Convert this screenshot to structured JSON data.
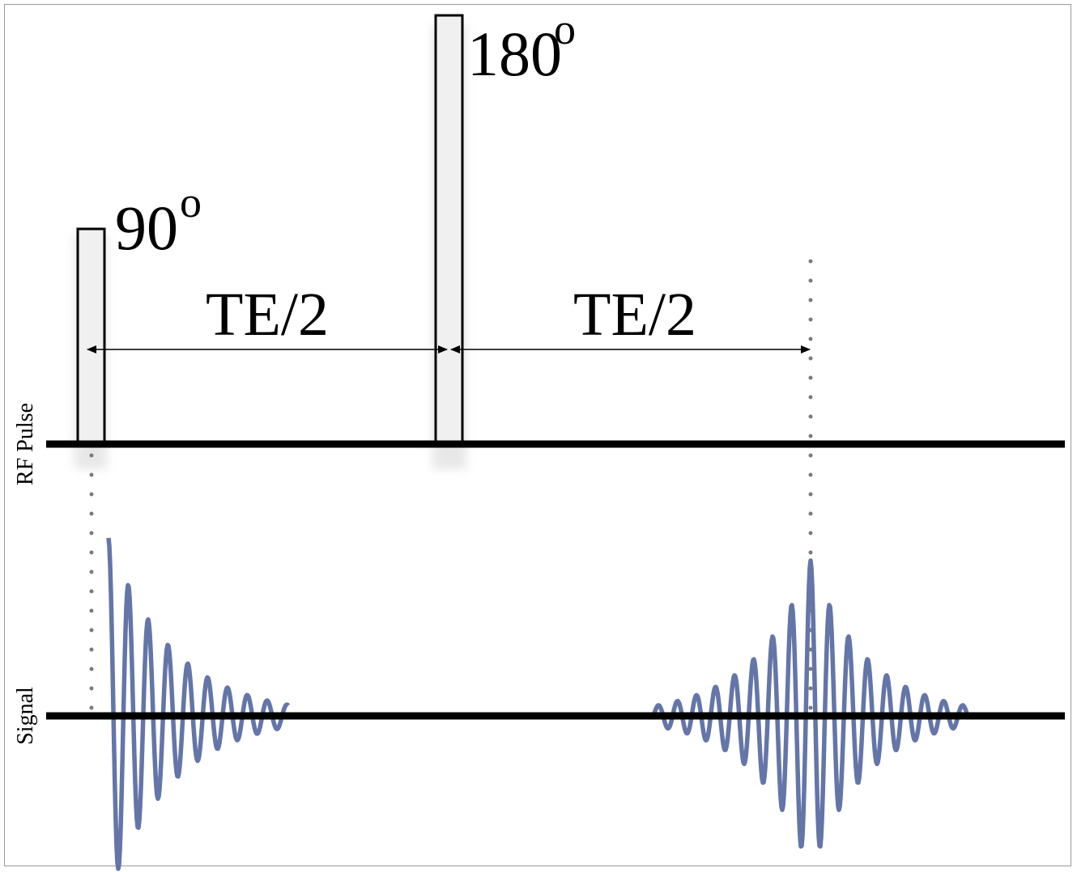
{
  "labels": {
    "pulse90": "90",
    "pulse90_sup": "o",
    "pulse180": "180",
    "pulse180_sup": "o",
    "te_half_1": "TE/2",
    "te_half_2": "TE/2",
    "axis_rf": "RF Pulse",
    "axis_signal": "Signal"
  },
  "colors": {
    "signal": "#6475a8",
    "guide": "#7a7a7a",
    "pulse_fill": "#f0f0f0",
    "axis": "#000000"
  }
}
